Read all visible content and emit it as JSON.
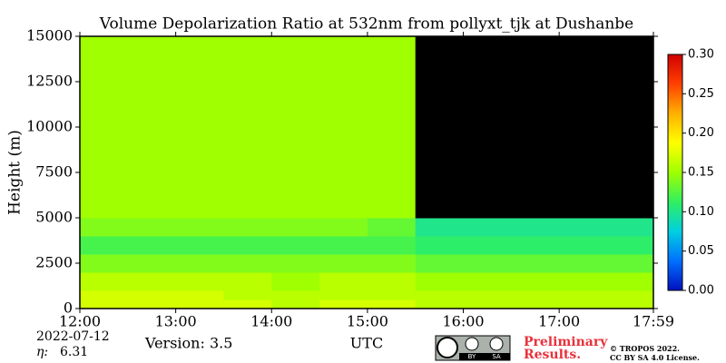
{
  "chart_data": {
    "type": "heatmap",
    "title": "Volume Depolarization Ratio at 532nm from pollyxt_tjk at Dushanbe",
    "ylabel": "Height (m)",
    "xlabel": "UTC",
    "x_edges": [
      12,
      12.5,
      13,
      13.5,
      14,
      14.5,
      15,
      15.5,
      16,
      16.5,
      17,
      17.5,
      17.983
    ],
    "y_edges": [
      0,
      500,
      1000,
      2000,
      3000,
      4000,
      5000,
      7500,
      10000,
      12500,
      15000
    ],
    "z": [
      [
        0.17,
        0.17,
        0.17,
        0.17,
        0.16,
        0.17,
        0.17,
        0.16,
        0.16,
        0.16,
        0.16,
        0.16
      ],
      [
        0.17,
        0.17,
        0.17,
        0.16,
        0.16,
        0.16,
        0.16,
        0.16,
        0.16,
        0.16,
        0.16,
        0.16
      ],
      [
        0.16,
        0.16,
        0.16,
        0.16,
        0.15,
        0.16,
        0.16,
        0.15,
        0.15,
        0.15,
        0.15,
        0.15
      ],
      [
        0.14,
        0.14,
        0.14,
        0.14,
        0.14,
        0.14,
        0.14,
        0.13,
        0.13,
        0.13,
        0.13,
        0.13
      ],
      [
        0.12,
        0.12,
        0.12,
        0.12,
        0.12,
        0.12,
        0.12,
        0.11,
        0.11,
        0.11,
        0.11,
        0.11
      ],
      [
        0.14,
        0.14,
        0.14,
        0.14,
        0.14,
        0.14,
        0.13,
        0.1,
        0.1,
        0.1,
        0.1,
        0.1
      ],
      [
        0.15,
        0.15,
        0.15,
        0.15,
        0.15,
        0.15,
        0.15,
        null,
        null,
        null,
        null,
        null
      ],
      [
        0.15,
        0.15,
        0.15,
        0.15,
        0.15,
        0.15,
        0.15,
        null,
        null,
        null,
        null,
        null
      ],
      [
        0.15,
        0.15,
        0.15,
        0.15,
        0.15,
        0.15,
        0.15,
        null,
        null,
        null,
        null,
        null
      ],
      [
        0.15,
        0.15,
        0.15,
        0.15,
        0.15,
        0.15,
        0.15,
        null,
        null,
        null,
        null,
        null
      ]
    ],
    "xlim": [
      12,
      17.983
    ],
    "xticks": [
      {
        "value": 12,
        "label": "12:00"
      },
      {
        "value": 13,
        "label": "13:00"
      },
      {
        "value": 14,
        "label": "14:00"
      },
      {
        "value": 15,
        "label": "15:00"
      },
      {
        "value": 16,
        "label": "16:00"
      },
      {
        "value": 17,
        "label": "17:00"
      },
      {
        "value": 17.983,
        "label": "17:59"
      }
    ],
    "ylim": [
      0,
      15000
    ],
    "yticks": [
      0,
      2500,
      5000,
      7500,
      10000,
      12500,
      15000
    ],
    "clim": [
      0,
      0.3
    ],
    "cticks": [
      {
        "value": 0,
        "label": "0.00"
      },
      {
        "value": 0.05,
        "label": "0.05"
      },
      {
        "value": 0.1,
        "label": "0.10"
      },
      {
        "value": 0.15,
        "label": "0.15"
      },
      {
        "value": 0.2,
        "label": "0.20"
      },
      {
        "value": 0.25,
        "label": "0.25"
      },
      {
        "value": 0.3,
        "label": "0.30"
      }
    ],
    "colormap": [
      "#0010c0",
      "#0070ff",
      "#00d0e0",
      "#30f060",
      "#a0ff00",
      "#ffff00",
      "#ffb000",
      "#ff4000",
      "#d00000"
    ],
    "nodata_color": "#000000"
  },
  "footer": {
    "date": "2022-07-12",
    "eta_label": "η:",
    "eta_value": "6.31",
    "version": "Version: 3.5",
    "license_badge": [
      "BY",
      "SA"
    ],
    "notice": [
      "Preliminary",
      "Results."
    ],
    "copyright": [
      "© TROPOS 2022.",
      "CC BY SA 4.0 License."
    ]
  }
}
